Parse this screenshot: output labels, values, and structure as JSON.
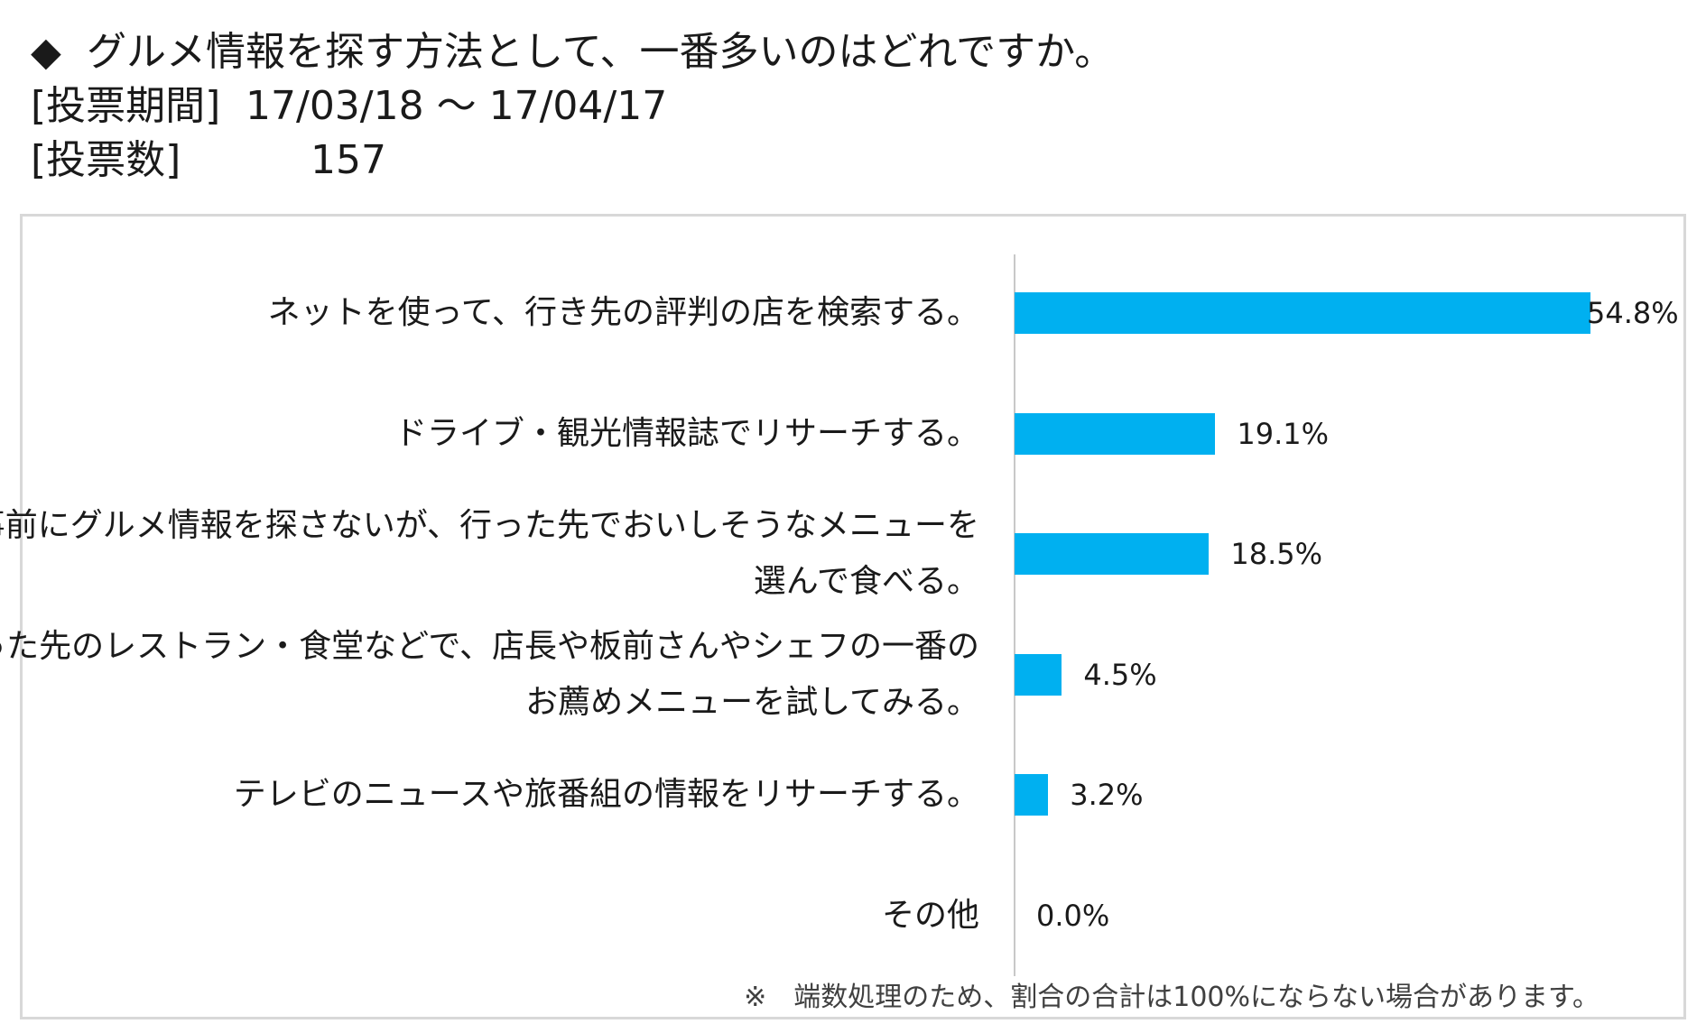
{
  "header": {
    "diamond": "◆",
    "question": "グルメ情報を探す方法として、一番多いのはどれですか。",
    "period_label": "[投票期間]",
    "period_value": "17/03/18 ～ 17/04/17",
    "count_label": "[投票数]",
    "count_value": "157"
  },
  "chart_data": {
    "type": "bar",
    "orientation": "horizontal",
    "title": "グルメ情報を探す方法として、一番多いのはどれですか。",
    "categories": [
      [
        "ネットを使って、行き先の評判の店を検索する。"
      ],
      [
        "ドライブ・観光情報誌でリサーチする。"
      ],
      [
        "事前にグルメ情報を探さないが、行った先でおいしそうなメニューを",
        "選んで食べる。"
      ],
      [
        "入った先のレストラン・食堂などで、店長や板前さんやシェフの一番の",
        "お薦めメニューを試してみる。"
      ],
      [
        "テレビのニュースや旅番組の情報をリサーチする。"
      ],
      [
        "その他"
      ]
    ],
    "values": [
      54.8,
      19.1,
      18.5,
      4.5,
      3.2,
      0.0
    ],
    "value_labels": [
      "54.8%",
      "19.1%",
      "18.5%",
      "4.5%",
      "3.2%",
      "0.0%"
    ],
    "unit": "%",
    "xlim": [
      0,
      54.8
    ],
    "bar_color": "#00b0f0",
    "grid": false,
    "legend": "none"
  },
  "footnote": "※　端数処理のため、割合の合計は100%にならない場合があります。"
}
